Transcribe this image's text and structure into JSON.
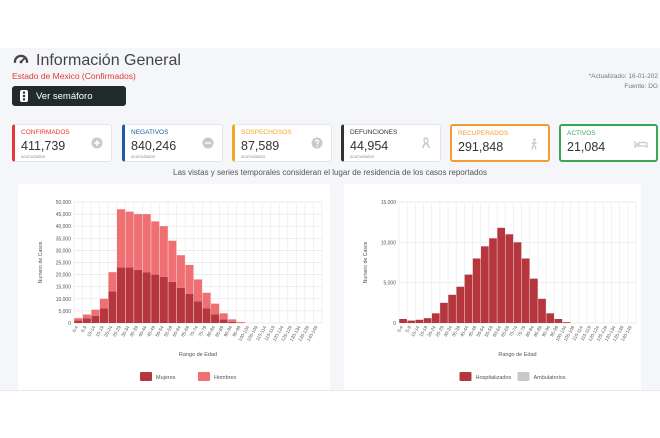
{
  "header": {
    "title": "Información General",
    "subtitle": "Estado de Mexico (Confirmados)",
    "updated_line1": "*Actualizado: 16-01-202",
    "updated_line2": "Fuente: DG",
    "semaforo_button": "Ver semáforo"
  },
  "cards": [
    {
      "label": "CONFIRMADOS",
      "value": "411,739",
      "sub": "acumulados",
      "color": "#e53935",
      "icon": "plus-circle-icon"
    },
    {
      "label": "NEGATIVOS",
      "value": "840,246",
      "sub": "acumulados",
      "color": "#1e5aa8",
      "icon": "minus-circle-icon"
    },
    {
      "label": "SOSPECHOSOS",
      "value": "87,589",
      "sub": "acumulados",
      "color": "#f4a81d",
      "icon": "question-circle-icon"
    },
    {
      "label": "DEFUNCIONES",
      "value": "44,954",
      "sub": "acumulados",
      "color": "#333333",
      "icon": "ribbon-icon"
    },
    {
      "label": "RECUPERADOS",
      "value": "291,848",
      "sub": "",
      "color": "#f39c33",
      "icon": "walking-person-icon"
    },
    {
      "label": "ACTIVOS",
      "value": "21,084",
      "sub": "",
      "color": "#3aa757",
      "icon": "bed-icon"
    }
  ],
  "note": "Las vistas y series temporales consideran el lugar de residencia de los casos reportados",
  "chart_data": [
    {
      "type": "bar",
      "stacked": true,
      "categories": [
        "0-4",
        "5-9",
        "10-14",
        "15-19",
        "20-24",
        "25-29",
        "30-34",
        "35-39",
        "40-44",
        "45-49",
        "50-54",
        "55-59",
        "60-64",
        "65-69",
        "70-74",
        "75-79",
        "80-84",
        "85-89",
        "90-94",
        "95-99",
        "100-104",
        "105-109",
        "110-114",
        "115-119",
        "120-124",
        "125-129",
        "130-134",
        "135-139",
        "140-149"
      ],
      "series": [
        {
          "name": "Mujeres",
          "color": "#b5363c",
          "values": [
            1000,
            2000,
            3000,
            6000,
            13000,
            23000,
            23000,
            22000,
            21000,
            20000,
            19000,
            17000,
            14500,
            12000,
            9000,
            6000,
            3500,
            1500,
            500,
            100,
            0,
            0,
            0,
            0,
            0,
            0,
            0,
            0,
            0
          ]
        },
        {
          "name": "Hombres",
          "color": "#ef6f72",
          "values": [
            1000,
            1500,
            2500,
            4000,
            8000,
            24000,
            23000,
            23000,
            24000,
            22000,
            21000,
            17000,
            13500,
            12000,
            9000,
            6500,
            4500,
            2500,
            1000,
            300,
            0,
            0,
            0,
            0,
            0,
            0,
            0,
            0,
            0
          ]
        }
      ],
      "ylim": [
        0,
        50000
      ],
      "yticks": [
        "0",
        "5,000",
        "10,000",
        "15,000",
        "20,000",
        "25,000",
        "30,000",
        "35,000",
        "40,000",
        "45,000",
        "50,000"
      ],
      "ylabel": "Numero de Casos",
      "xlabel": "Rango de Edad"
    },
    {
      "type": "bar",
      "categories": [
        "0-4",
        "5-9",
        "10-14",
        "15-19",
        "20-24",
        "25-29",
        "30-34",
        "35-39",
        "40-44",
        "45-49",
        "50-54",
        "55-59",
        "60-64",
        "65-69",
        "70-74",
        "75-79",
        "80-84",
        "85-89",
        "90-94",
        "95-99",
        "100-104",
        "105-109",
        "110-114",
        "115-119",
        "120-124",
        "125-129",
        "130-134",
        "135-139",
        "140-149"
      ],
      "series": [
        {
          "name": "Hospitalizados",
          "color": "#b5363c",
          "values": [
            500,
            300,
            400,
            600,
            1200,
            2500,
            3500,
            4500,
            6000,
            8000,
            9500,
            10500,
            11800,
            11000,
            10000,
            8000,
            5500,
            3000,
            1200,
            500,
            100,
            0,
            0,
            0,
            0,
            0,
            0,
            0,
            0
          ]
        },
        {
          "name": "Ambulatorios",
          "color": "#c8c8c8",
          "values": [
            0,
            0,
            0,
            0,
            0,
            0,
            0,
            0,
            0,
            0,
            0,
            0,
            0,
            0,
            0,
            0,
            0,
            0,
            0,
            0,
            0,
            0,
            0,
            0,
            0,
            0,
            0,
            0,
            0
          ]
        }
      ],
      "ylim": [
        0,
        15000
      ],
      "yticks": [
        "0",
        "5,000",
        "10,000",
        "15,000"
      ],
      "ylabel": "Numero de Casos",
      "xlabel": "Rango de Edad"
    }
  ]
}
